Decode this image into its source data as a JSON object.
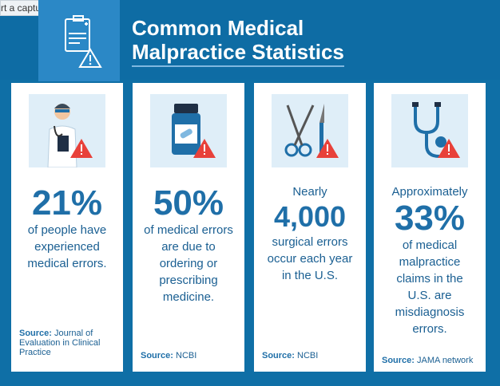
{
  "capture_label": "rt a capture",
  "title_line1": "Common Medical",
  "title_line2": "Malpractice Statistics",
  "cards": [
    {
      "lead": "",
      "big": "21%",
      "text": "of people have experienced medical errors.",
      "source_label": "Source:",
      "source": "Journal of Evaluation in Clinical Practice"
    },
    {
      "lead": "",
      "big": "50%",
      "text": "of medical errors are due to ordering or prescribing medicine.",
      "source_label": "Source:",
      "source": "NCBI"
    },
    {
      "lead": "Nearly",
      "big": "4,000",
      "text": "surgical errors occur each year in the U.S.",
      "source_label": "Source:",
      "source": "NCBI"
    },
    {
      "lead": "Approximately",
      "big": "33%",
      "text": "of medical malpractice claims in the U.S. are misdiagnosis errors.",
      "source_label": "Source:",
      "source": "JAMA network"
    }
  ],
  "icons": {
    "header": "clipboard-warning-icon",
    "card1": "doctor-warning-icon",
    "card2": "pill-bottle-warning-icon",
    "card3": "surgical-tools-warning-icon",
    "card4": "stethoscope-warning-icon"
  },
  "colors": {
    "navy": "#0f6fa6",
    "accent": "#2b88c6",
    "warning": "#e8413a"
  }
}
